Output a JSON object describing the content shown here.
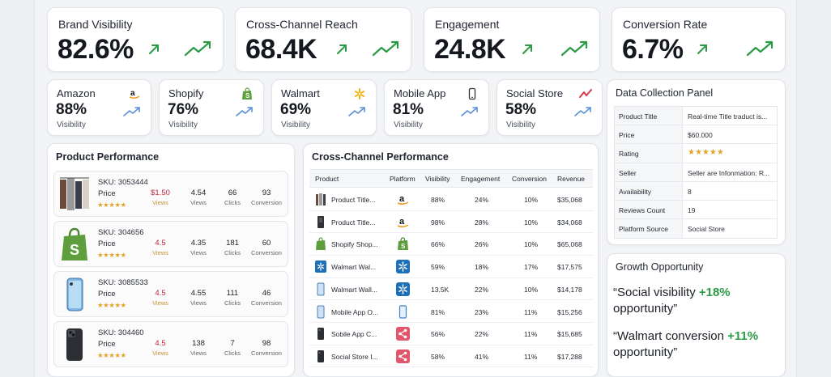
{
  "kpis": [
    {
      "label": "Brand Visibility",
      "value": "82.6%"
    },
    {
      "label": "Cross-Channel Reach",
      "value": "68.4K"
    },
    {
      "label": "Engagement",
      "value": "24.8K"
    },
    {
      "label": "Conversion Rate",
      "value": "6.7%"
    }
  ],
  "platforms": [
    {
      "name": "Amazon",
      "value": "88%",
      "sub": "Visibility",
      "icon": "amazon-icon"
    },
    {
      "name": "Shopify",
      "value": "76%",
      "sub": "Visibility",
      "icon": "shopify-icon"
    },
    {
      "name": "Walmart",
      "value": "69%",
      "sub": "Visibility",
      "icon": "walmart-icon"
    },
    {
      "name": "Mobile App",
      "value": "81%",
      "sub": "Visibility",
      "icon": "phone-icon"
    },
    {
      "name": "Social Store",
      "value": "58%",
      "sub": "Visibility",
      "icon": "social-trend-icon"
    }
  ],
  "product_performance": {
    "title": "Product Performance",
    "items": [
      {
        "sku": "SKU: 3053444",
        "price_label": "Price",
        "price": "$1.50",
        "price_sub": "Views",
        "views": "4.54",
        "views_l": "Views",
        "clicks": "66",
        "clicks_l": "Clicks",
        "conv": "93",
        "conv_l": "Conversion",
        "thumb": "clothing-thumb"
      },
      {
        "sku": "SKU: 304656",
        "price_label": "Price",
        "price": "4.5",
        "price_sub": "Views",
        "views": "4.35",
        "views_l": "Views",
        "clicks": "181",
        "clicks_l": "Clicks",
        "conv": "60",
        "conv_l": "Conversion",
        "thumb": "shopify-bag-thumb"
      },
      {
        "sku": "SKU: 3085533",
        "price_label": "Price",
        "price": "4.5",
        "price_sub": "Views",
        "views": "4.55",
        "views_l": "Views",
        "clicks": "111",
        "clicks_l": "Clicks",
        "conv": "46",
        "conv_l": "Conversion",
        "thumb": "phone-blue-thumb"
      },
      {
        "sku": "SKU: 304460",
        "price_label": "Price",
        "price": "4.5",
        "price_sub": "Views",
        "views": "138",
        "views_l": "Views",
        "clicks": "7",
        "clicks_l": "Clicks",
        "conv": "98",
        "conv_l": "Conversion",
        "thumb": "phone-black-thumb"
      }
    ],
    "stars": "★★★★★"
  },
  "cross_channel": {
    "title": "Cross-Channel Performance",
    "columns": [
      "Product",
      "Platform",
      "Visibility",
      "Engagement",
      "Conversion",
      "Revenue"
    ],
    "rows": [
      {
        "product": "Product Title...",
        "platform": "amazon",
        "visibility": "88%",
        "engagement": "24%",
        "conversion": "10%",
        "revenue": "$35,068",
        "thumb": "clothing"
      },
      {
        "product": "Product Title...",
        "platform": "amazon",
        "visibility": "98%",
        "engagement": "28%",
        "conversion": "10%",
        "revenue": "$34,068",
        "thumb": "clothing-dark"
      },
      {
        "product": "Shopify Shop...",
        "platform": "shopify",
        "visibility": "66%",
        "engagement": "26%",
        "conversion": "10%",
        "revenue": "$65,068",
        "thumb": "shopify"
      },
      {
        "product": "Walmart Wal...",
        "platform": "walmart",
        "visibility": "59%",
        "engagement": "18%",
        "conversion": "17%",
        "revenue": "$17,575",
        "thumb": "walmart"
      },
      {
        "product": "Walmart Wall...",
        "platform": "walmart",
        "visibility": "13.5K",
        "engagement": "22%",
        "conversion": "10%",
        "revenue": "$14,178",
        "thumb": "phone"
      },
      {
        "product": "Mobile App O...",
        "platform": "mobile",
        "visibility": "81%",
        "engagement": "23%",
        "conversion": "11%",
        "revenue": "$15,256",
        "thumb": "phone"
      },
      {
        "product": "Sobile App C...",
        "platform": "social",
        "visibility": "56%",
        "engagement": "22%",
        "conversion": "11%",
        "revenue": "$15,685",
        "thumb": "phone-black"
      },
      {
        "product": "Social Store I...",
        "platform": "social",
        "visibility": "58%",
        "engagement": "41%",
        "conversion": "11%",
        "revenue": "$17,288",
        "thumb": "phone-black"
      }
    ]
  },
  "data_collection": {
    "title": "Data Collection Panel",
    "rows": [
      {
        "key": "Product Title",
        "value": "Real-time Title traduct is..."
      },
      {
        "key": "Price",
        "value": "$60.000"
      },
      {
        "key": "Rating",
        "value": "★★★★★"
      },
      {
        "key": "Seller",
        "value": "Seller are Infonmation: R..."
      },
      {
        "key": "Availability",
        "value": "8"
      },
      {
        "key": "Reviews Count",
        "value": "19"
      },
      {
        "key": "Platform Source",
        "value": "Social Store"
      }
    ]
  },
  "growth": {
    "title": "Growth Opportunity",
    "items": [
      {
        "prefix": "“Social visibility ",
        "highlight": "+18%",
        "suffix": "opportunity”"
      },
      {
        "prefix": "“Walmart conversion ",
        "highlight": "+11%",
        "suffix": "opportunity”"
      }
    ]
  },
  "colors": {
    "accent_green": "#2b9a45",
    "price_red": "#c0263a",
    "star": "#e2a42a",
    "trend_blue": "#5a8fd6"
  }
}
